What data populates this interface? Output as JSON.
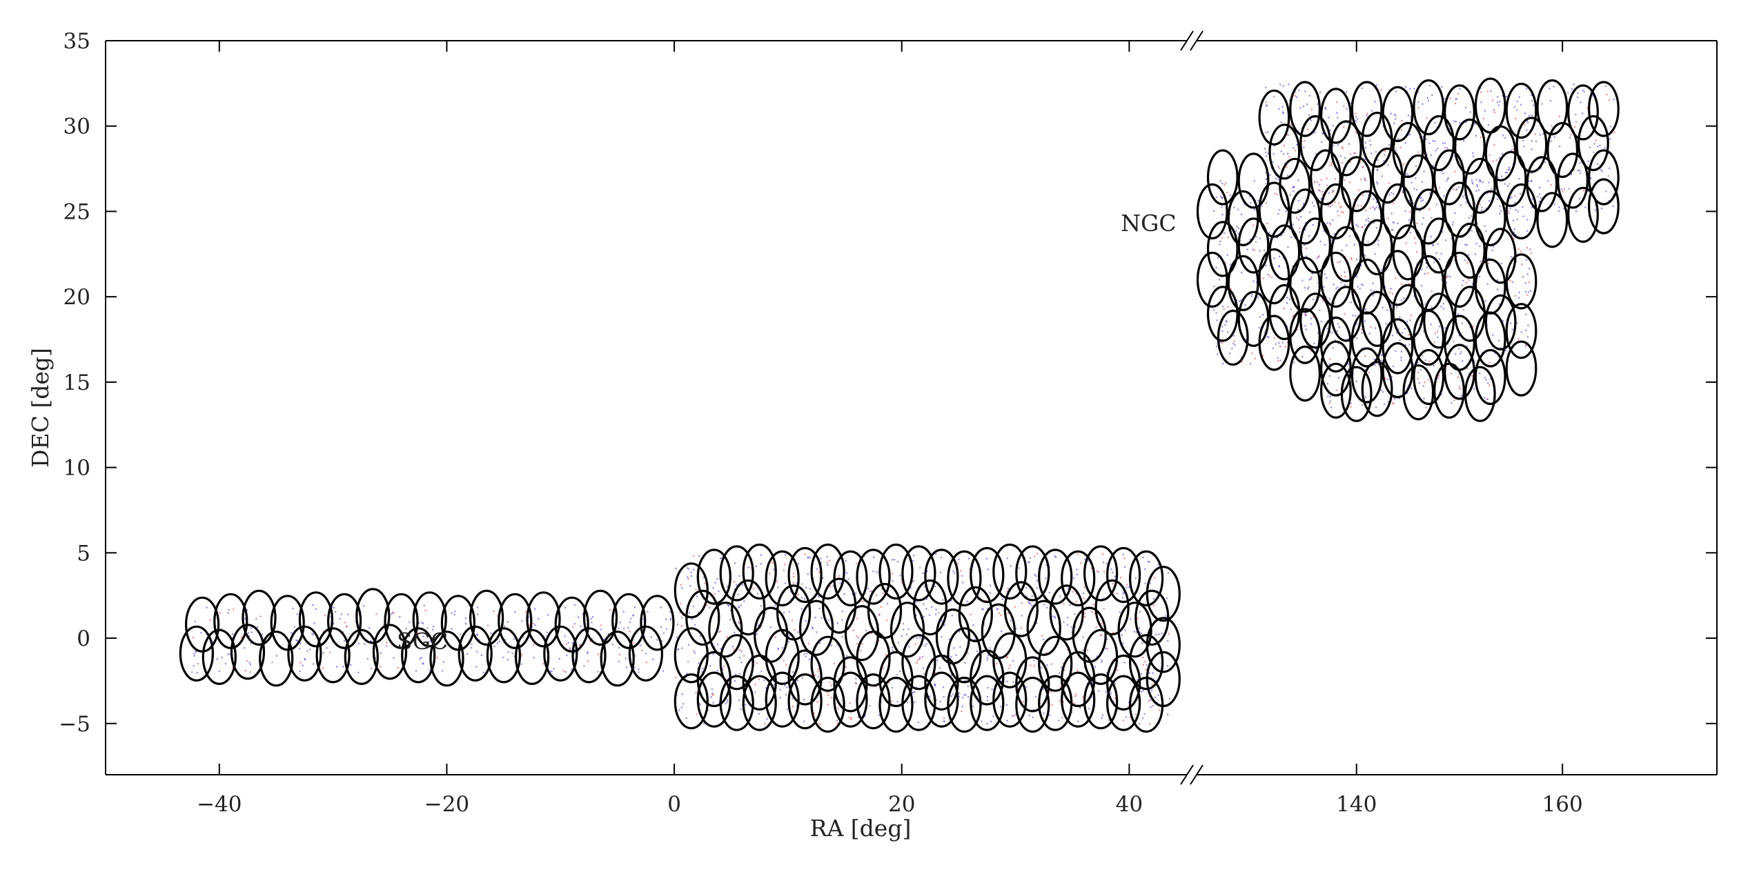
{
  "chart_data": {
    "type": "scatter",
    "xlabel": "RA [deg]",
    "ylabel": "DEC [deg]",
    "x_axis_break": true,
    "x_segments": [
      {
        "xlim": [
          -50,
          45.5
        ],
        "ticks": [
          -40,
          -20,
          0,
          20,
          40
        ],
        "tick_labels": [
          "−40",
          "−20",
          "0",
          "20",
          "40"
        ]
      },
      {
        "xlim": [
          124,
          175
        ],
        "ticks": [
          140,
          160
        ],
        "tick_labels": [
          "140",
          "160"
        ]
      }
    ],
    "ylim": [
      -8,
      35
    ],
    "yticks": [
      -5,
      0,
      5,
      10,
      15,
      20,
      25,
      30,
      35
    ],
    "ytick_labels": [
      "−5",
      "0",
      "5",
      "10",
      "15",
      "20",
      "25",
      "30",
      "35"
    ],
    "grid": false,
    "legend": "none",
    "colors": {
      "point_blue": "#3b2bd6",
      "point_red": "#e8322e",
      "circle_outline": "#000000",
      "axes": "#000000"
    },
    "regions": [
      {
        "name": "SGC",
        "footprint": [
          {
            "ra": [
              -42.5,
              0
            ],
            "dec": [
              -2,
              2
            ]
          },
          {
            "ra": [
              0,
              43.5
            ],
            "dec": [
              -5,
              5
            ]
          }
        ],
        "red_overdense_spots": [
          {
            "ra": 17,
            "dec": 0.5
          },
          {
            "ra": 30,
            "dec": 0
          },
          {
            "ra": 34,
            "dec": -2.5
          },
          {
            "ra": 14,
            "dec": -3.5
          },
          {
            "ra": 37,
            "dec": 2
          }
        ],
        "circle_ellipses": [
          {
            "ra": -41.5,
            "dec": 0.8
          },
          {
            "ra": -39,
            "dec": 1.0
          },
          {
            "ra": -36.5,
            "dec": 1.2
          },
          {
            "ra": -34,
            "dec": 0.9
          },
          {
            "ra": -31.5,
            "dec": 1.1
          },
          {
            "ra": -29,
            "dec": 1.0
          },
          {
            "ra": -26.5,
            "dec": 1.3
          },
          {
            "ra": -24,
            "dec": 1.0
          },
          {
            "ra": -21.5,
            "dec": 1.1
          },
          {
            "ra": -19,
            "dec": 0.9
          },
          {
            "ra": -16.5,
            "dec": 1.2
          },
          {
            "ra": -14,
            "dec": 1.0
          },
          {
            "ra": -11.5,
            "dec": 1.1
          },
          {
            "ra": -9,
            "dec": 0.8
          },
          {
            "ra": -6.5,
            "dec": 1.2
          },
          {
            "ra": -4,
            "dec": 1.0
          },
          {
            "ra": -1.5,
            "dec": 0.9
          },
          {
            "ra": -42,
            "dec": -0.9
          },
          {
            "ra": -40,
            "dec": -1.1
          },
          {
            "ra": -37.5,
            "dec": -0.8
          },
          {
            "ra": -35,
            "dec": -1.2
          },
          {
            "ra": -32.5,
            "dec": -0.9
          },
          {
            "ra": -30,
            "dec": -1.0
          },
          {
            "ra": -27.5,
            "dec": -1.1
          },
          {
            "ra": -25,
            "dec": -0.8
          },
          {
            "ra": -22.5,
            "dec": -1.0
          },
          {
            "ra": -20,
            "dec": -1.2
          },
          {
            "ra": -17.5,
            "dec": -0.9
          },
          {
            "ra": -15,
            "dec": -1.0
          },
          {
            "ra": -12.5,
            "dec": -1.1
          },
          {
            "ra": -10,
            "dec": -0.9
          },
          {
            "ra": -7.5,
            "dec": -1.0
          },
          {
            "ra": -5,
            "dec": -1.2
          },
          {
            "ra": -2.5,
            "dec": -0.9
          },
          {
            "ra": 1.5,
            "dec": 2.8
          },
          {
            "ra": 5.5,
            "dec": 3.8
          },
          {
            "ra": 9.5,
            "dec": 3.5
          },
          {
            "ra": 13.5,
            "dec": 3.9
          },
          {
            "ra": 17.5,
            "dec": 3.6
          },
          {
            "ra": 21.5,
            "dec": 3.8
          },
          {
            "ra": 25.5,
            "dec": 3.5
          },
          {
            "ra": 29.5,
            "dec": 3.9
          },
          {
            "ra": 33.5,
            "dec": 3.6
          },
          {
            "ra": 37.5,
            "dec": 3.8
          },
          {
            "ra": 41.5,
            "dec": 3.5
          },
          {
            "ra": 3.5,
            "dec": 3.6
          },
          {
            "ra": 7.5,
            "dec": 3.9
          },
          {
            "ra": 11.5,
            "dec": 3.7
          },
          {
            "ra": 15.5,
            "dec": 3.5
          },
          {
            "ra": 19.5,
            "dec": 3.9
          },
          {
            "ra": 23.5,
            "dec": 3.6
          },
          {
            "ra": 27.5,
            "dec": 3.7
          },
          {
            "ra": 31.5,
            "dec": 3.8
          },
          {
            "ra": 35.5,
            "dec": 3.5
          },
          {
            "ra": 39.5,
            "dec": 3.7
          },
          {
            "ra": 43,
            "dec": 2.6
          },
          {
            "ra": 2.5,
            "dec": 1.2
          },
          {
            "ra": 6.5,
            "dec": 1.8
          },
          {
            "ra": 10.5,
            "dec": 1.5
          },
          {
            "ra": 14.5,
            "dec": 1.9
          },
          {
            "ra": 18.5,
            "dec": 1.6
          },
          {
            "ra": 22.5,
            "dec": 1.8
          },
          {
            "ra": 26.5,
            "dec": 1.4
          },
          {
            "ra": 30.5,
            "dec": 1.7
          },
          {
            "ra": 34.5,
            "dec": 1.5
          },
          {
            "ra": 38.5,
            "dec": 1.8
          },
          {
            "ra": 42,
            "dec": 1.2
          },
          {
            "ra": 4.5,
            "dec": 0.5
          },
          {
            "ra": 8.5,
            "dec": 0.2
          },
          {
            "ra": 12.5,
            "dec": 0.6
          },
          {
            "ra": 16.5,
            "dec": 0.3
          },
          {
            "ra": 20.5,
            "dec": 0.5
          },
          {
            "ra": 24.5,
            "dec": 0.1
          },
          {
            "ra": 28.5,
            "dec": 0.4
          },
          {
            "ra": 32.5,
            "dec": 0.6
          },
          {
            "ra": 36.5,
            "dec": 0.2
          },
          {
            "ra": 40.5,
            "dec": 0.5
          },
          {
            "ra": 43,
            "dec": -0.4
          },
          {
            "ra": 1.5,
            "dec": -1.0
          },
          {
            "ra": 5.5,
            "dec": -1.4
          },
          {
            "ra": 9.5,
            "dec": -1.1
          },
          {
            "ra": 13.5,
            "dec": -1.5
          },
          {
            "ra": 17.5,
            "dec": -1.2
          },
          {
            "ra": 21.5,
            "dec": -1.4
          },
          {
            "ra": 25.5,
            "dec": -1.0
          },
          {
            "ra": 29.5,
            "dec": -1.3
          },
          {
            "ra": 33.5,
            "dec": -1.5
          },
          {
            "ra": 37.5,
            "dec": -1.1
          },
          {
            "ra": 41.5,
            "dec": -1.4
          },
          {
            "ra": 3.5,
            "dec": -2.4
          },
          {
            "ra": 7.5,
            "dec": -2.6
          },
          {
            "ra": 11.5,
            "dec": -2.3
          },
          {
            "ra": 15.5,
            "dec": -2.7
          },
          {
            "ra": 19.5,
            "dec": -2.4
          },
          {
            "ra": 23.5,
            "dec": -2.6
          },
          {
            "ra": 27.5,
            "dec": -2.3
          },
          {
            "ra": 31.5,
            "dec": -2.7
          },
          {
            "ra": 35.5,
            "dec": -2.4
          },
          {
            "ra": 39.5,
            "dec": -2.6
          },
          {
            "ra": 43,
            "dec": -2.4
          },
          {
            "ra": 1.5,
            "dec": -3.7
          },
          {
            "ra": 5.5,
            "dec": -3.8
          },
          {
            "ra": 9.5,
            "dec": -3.6
          },
          {
            "ra": 13.5,
            "dec": -3.9
          },
          {
            "ra": 17.5,
            "dec": -3.7
          },
          {
            "ra": 21.5,
            "dec": -3.8
          },
          {
            "ra": 25.5,
            "dec": -3.9
          },
          {
            "ra": 29.5,
            "dec": -3.6
          },
          {
            "ra": 33.5,
            "dec": -3.8
          },
          {
            "ra": 37.5,
            "dec": -3.7
          },
          {
            "ra": 41.5,
            "dec": -3.9
          },
          {
            "ra": 3.5,
            "dec": -3.6
          },
          {
            "ra": 7.5,
            "dec": -3.8
          },
          {
            "ra": 11.5,
            "dec": -3.7
          },
          {
            "ra": 15.5,
            "dec": -3.6
          },
          {
            "ra": 19.5,
            "dec": -3.9
          },
          {
            "ra": 23.5,
            "dec": -3.6
          },
          {
            "ra": 27.5,
            "dec": -3.8
          },
          {
            "ra": 31.5,
            "dec": -3.9
          },
          {
            "ra": 35.5,
            "dec": -3.6
          },
          {
            "ra": 39.5,
            "dec": -3.8
          }
        ]
      },
      {
        "name": "NGC",
        "footprint": [
          {
            "ra": [
              131,
              165
            ],
            "dec": [
              25,
              32.5
            ]
          },
          {
            "ra": [
              126,
              157
            ],
            "dec": [
              16,
              27
            ]
          },
          {
            "ra": [
              137,
              153
            ],
            "dec": [
              13.5,
              16
            ]
          }
        ],
        "red_overdense_spots": [
          {
            "ra": 139,
            "dec": 26.5
          }
        ],
        "circle_ellipses": [
          {
            "ra": 132,
            "dec": 30.5
          },
          {
            "ra": 135,
            "dec": 31.0
          },
          {
            "ra": 138,
            "dec": 30.6
          },
          {
            "ra": 141,
            "dec": 31.0
          },
          {
            "ra": 144,
            "dec": 30.7
          },
          {
            "ra": 147,
            "dec": 31.1
          },
          {
            "ra": 150,
            "dec": 30.8
          },
          {
            "ra": 153,
            "dec": 31.2
          },
          {
            "ra": 156,
            "dec": 30.9
          },
          {
            "ra": 159,
            "dec": 31.1
          },
          {
            "ra": 162,
            "dec": 30.8
          },
          {
            "ra": 164,
            "dec": 31.0
          },
          {
            "ra": 133,
            "dec": 28.5
          },
          {
            "ra": 136,
            "dec": 29.0
          },
          {
            "ra": 139,
            "dec": 28.7
          },
          {
            "ra": 142,
            "dec": 29.2
          },
          {
            "ra": 145,
            "dec": 28.6
          },
          {
            "ra": 148,
            "dec": 29.0
          },
          {
            "ra": 151,
            "dec": 28.8
          },
          {
            "ra": 154,
            "dec": 28.4
          },
          {
            "ra": 157,
            "dec": 28.9
          },
          {
            "ra": 160,
            "dec": 28.6
          },
          {
            "ra": 163,
            "dec": 29.0
          },
          {
            "ra": 127,
            "dec": 27.0
          },
          {
            "ra": 130,
            "dec": 26.8
          },
          {
            "ra": 134,
            "dec": 26.5
          },
          {
            "ra": 137,
            "dec": 27.0
          },
          {
            "ra": 140,
            "dec": 26.6
          },
          {
            "ra": 143,
            "dec": 27.1
          },
          {
            "ra": 146,
            "dec": 26.7
          },
          {
            "ra": 149,
            "dec": 27.0
          },
          {
            "ra": 152,
            "dec": 26.5
          },
          {
            "ra": 155,
            "dec": 26.9
          },
          {
            "ra": 158,
            "dec": 26.6
          },
          {
            "ra": 161,
            "dec": 26.8
          },
          {
            "ra": 164,
            "dec": 27.0
          },
          {
            "ra": 126,
            "dec": 25.0
          },
          {
            "ra": 129,
            "dec": 24.6
          },
          {
            "ra": 132,
            "dec": 25.1
          },
          {
            "ra": 135,
            "dec": 24.7
          },
          {
            "ra": 138,
            "dec": 25.0
          },
          {
            "ra": 141,
            "dec": 24.6
          },
          {
            "ra": 144,
            "dec": 25.0
          },
          {
            "ra": 147,
            "dec": 24.7
          },
          {
            "ra": 150,
            "dec": 25.1
          },
          {
            "ra": 153,
            "dec": 24.6
          },
          {
            "ra": 156,
            "dec": 25.0
          },
          {
            "ra": 159,
            "dec": 24.5
          },
          {
            "ra": 162,
            "dec": 24.8
          },
          {
            "ra": 164,
            "dec": 25.3
          },
          {
            "ra": 127,
            "dec": 22.8
          },
          {
            "ra": 130,
            "dec": 23.0
          },
          {
            "ra": 133,
            "dec": 22.6
          },
          {
            "ra": 136,
            "dec": 23.0
          },
          {
            "ra": 139,
            "dec": 22.5
          },
          {
            "ra": 142,
            "dec": 22.9
          },
          {
            "ra": 145,
            "dec": 22.6
          },
          {
            "ra": 148,
            "dec": 23.0
          },
          {
            "ra": 151,
            "dec": 22.7
          },
          {
            "ra": 154,
            "dec": 22.4
          },
          {
            "ra": 126,
            "dec": 21.0
          },
          {
            "ra": 129,
            "dec": 20.8
          },
          {
            "ra": 132,
            "dec": 21.2
          },
          {
            "ra": 135,
            "dec": 20.7
          },
          {
            "ra": 138,
            "dec": 21.0
          },
          {
            "ra": 141,
            "dec": 20.6
          },
          {
            "ra": 144,
            "dec": 21.1
          },
          {
            "ra": 147,
            "dec": 20.8
          },
          {
            "ra": 150,
            "dec": 21.0
          },
          {
            "ra": 153,
            "dec": 20.6
          },
          {
            "ra": 156,
            "dec": 20.9
          },
          {
            "ra": 127,
            "dec": 19.0
          },
          {
            "ra": 130,
            "dec": 18.7
          },
          {
            "ra": 133,
            "dec": 19.1
          },
          {
            "ra": 136,
            "dec": 18.6
          },
          {
            "ra": 139,
            "dec": 19.0
          },
          {
            "ra": 142,
            "dec": 18.7
          },
          {
            "ra": 145,
            "dec": 19.1
          },
          {
            "ra": 148,
            "dec": 18.6
          },
          {
            "ra": 151,
            "dec": 19.0
          },
          {
            "ra": 154,
            "dec": 18.5
          },
          {
            "ra": 128,
            "dec": 17.6
          },
          {
            "ra": 132,
            "dec": 17.3
          },
          {
            "ra": 135,
            "dec": 17.7
          },
          {
            "ra": 138,
            "dec": 17.2
          },
          {
            "ra": 141,
            "dec": 17.5
          },
          {
            "ra": 144,
            "dec": 17.1
          },
          {
            "ra": 147,
            "dec": 17.6
          },
          {
            "ra": 150,
            "dec": 17.3
          },
          {
            "ra": 153,
            "dec": 17.5
          },
          {
            "ra": 156,
            "dec": 18.0
          },
          {
            "ra": 135,
            "dec": 15.5
          },
          {
            "ra": 138,
            "dec": 15.8
          },
          {
            "ra": 141,
            "dec": 15.4
          },
          {
            "ra": 144,
            "dec": 15.7
          },
          {
            "ra": 147,
            "dec": 15.3
          },
          {
            "ra": 150,
            "dec": 15.6
          },
          {
            "ra": 153,
            "dec": 15.3
          },
          {
            "ra": 156,
            "dec": 15.8
          },
          {
            "ra": 138,
            "dec": 14.5
          },
          {
            "ra": 140,
            "dec": 14.3
          },
          {
            "ra": 142,
            "dec": 14.6
          },
          {
            "ra": 146,
            "dec": 14.4
          },
          {
            "ra": 149,
            "dec": 14.5
          },
          {
            "ra": 152,
            "dec": 14.3
          }
        ]
      }
    ],
    "annotations": [
      {
        "text": "NGC",
        "ra": 122.5,
        "dec": 24.3,
        "anchor": "end"
      },
      {
        "text": "SGC",
        "ra": 46.8,
        "dec": -0.2,
        "anchor": "start"
      }
    ]
  }
}
